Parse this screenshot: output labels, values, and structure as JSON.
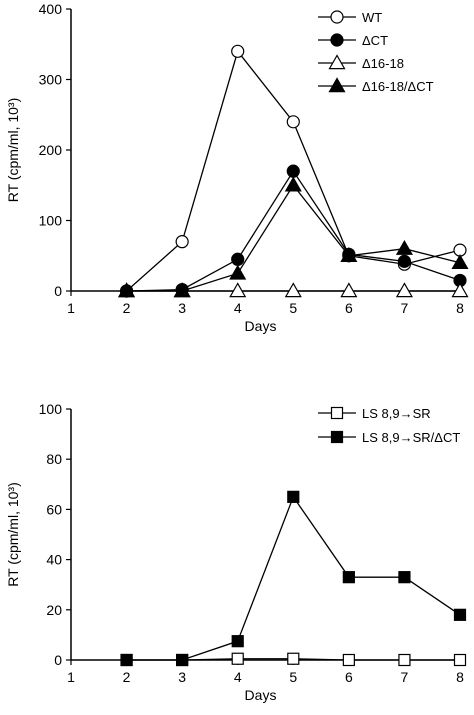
{
  "chart_data": [
    {
      "type": "line",
      "xlabel": "Days",
      "ylabel": "RT (cpm/ml, 10³)",
      "xlim": [
        1,
        8
      ],
      "ylim": [
        0,
        400
      ],
      "x_ticks": [
        1,
        2,
        3,
        4,
        5,
        6,
        7,
        8
      ],
      "y_ticks": [
        0,
        100,
        200,
        300,
        400
      ],
      "grid": false,
      "legend_position": "top-right",
      "series": [
        {
          "name": "WT",
          "marker": "circle-open",
          "x": [
            2,
            3,
            4,
            5,
            6,
            7,
            8
          ],
          "values": [
            0,
            70,
            340,
            240,
            50,
            38,
            58
          ]
        },
        {
          "name": "ΔCT",
          "marker": "circle-filled",
          "x": [
            2,
            3,
            4,
            5,
            6,
            7,
            8
          ],
          "values": [
            0,
            2,
            45,
            170,
            52,
            42,
            15
          ]
        },
        {
          "name": "Δ16-18",
          "marker": "triangle-open",
          "x": [
            2,
            3,
            4,
            5,
            6,
            7,
            8
          ],
          "values": [
            0,
            0,
            0,
            0,
            0,
            0,
            0
          ]
        },
        {
          "name": "Δ16-18/ΔCT",
          "marker": "triangle-filled",
          "x": [
            2,
            3,
            4,
            5,
            6,
            7,
            8
          ],
          "values": [
            0,
            0,
            25,
            150,
            50,
            60,
            40
          ]
        }
      ]
    },
    {
      "type": "line",
      "xlabel": "Days",
      "ylabel": "RT (cpm/ml, 10³)",
      "xlim": [
        1,
        8
      ],
      "ylim": [
        0,
        100
      ],
      "x_ticks": [
        1,
        2,
        3,
        4,
        5,
        6,
        7,
        8
      ],
      "y_ticks": [
        0,
        20,
        40,
        60,
        80,
        100
      ],
      "grid": false,
      "legend_position": "top-right",
      "series": [
        {
          "name": "LS 8,9→SR",
          "marker": "square-open",
          "x": [
            2,
            3,
            4,
            5,
            6,
            7,
            8
          ],
          "values": [
            0,
            0,
            0.5,
            0.5,
            0,
            0,
            0
          ]
        },
        {
          "name": "LS 8,9→SR/ΔCT",
          "marker": "square-filled",
          "x": [
            2,
            3,
            4,
            5,
            6,
            7,
            8
          ],
          "values": [
            0,
            0,
            7.5,
            65,
            33,
            33,
            18
          ]
        }
      ]
    }
  ]
}
